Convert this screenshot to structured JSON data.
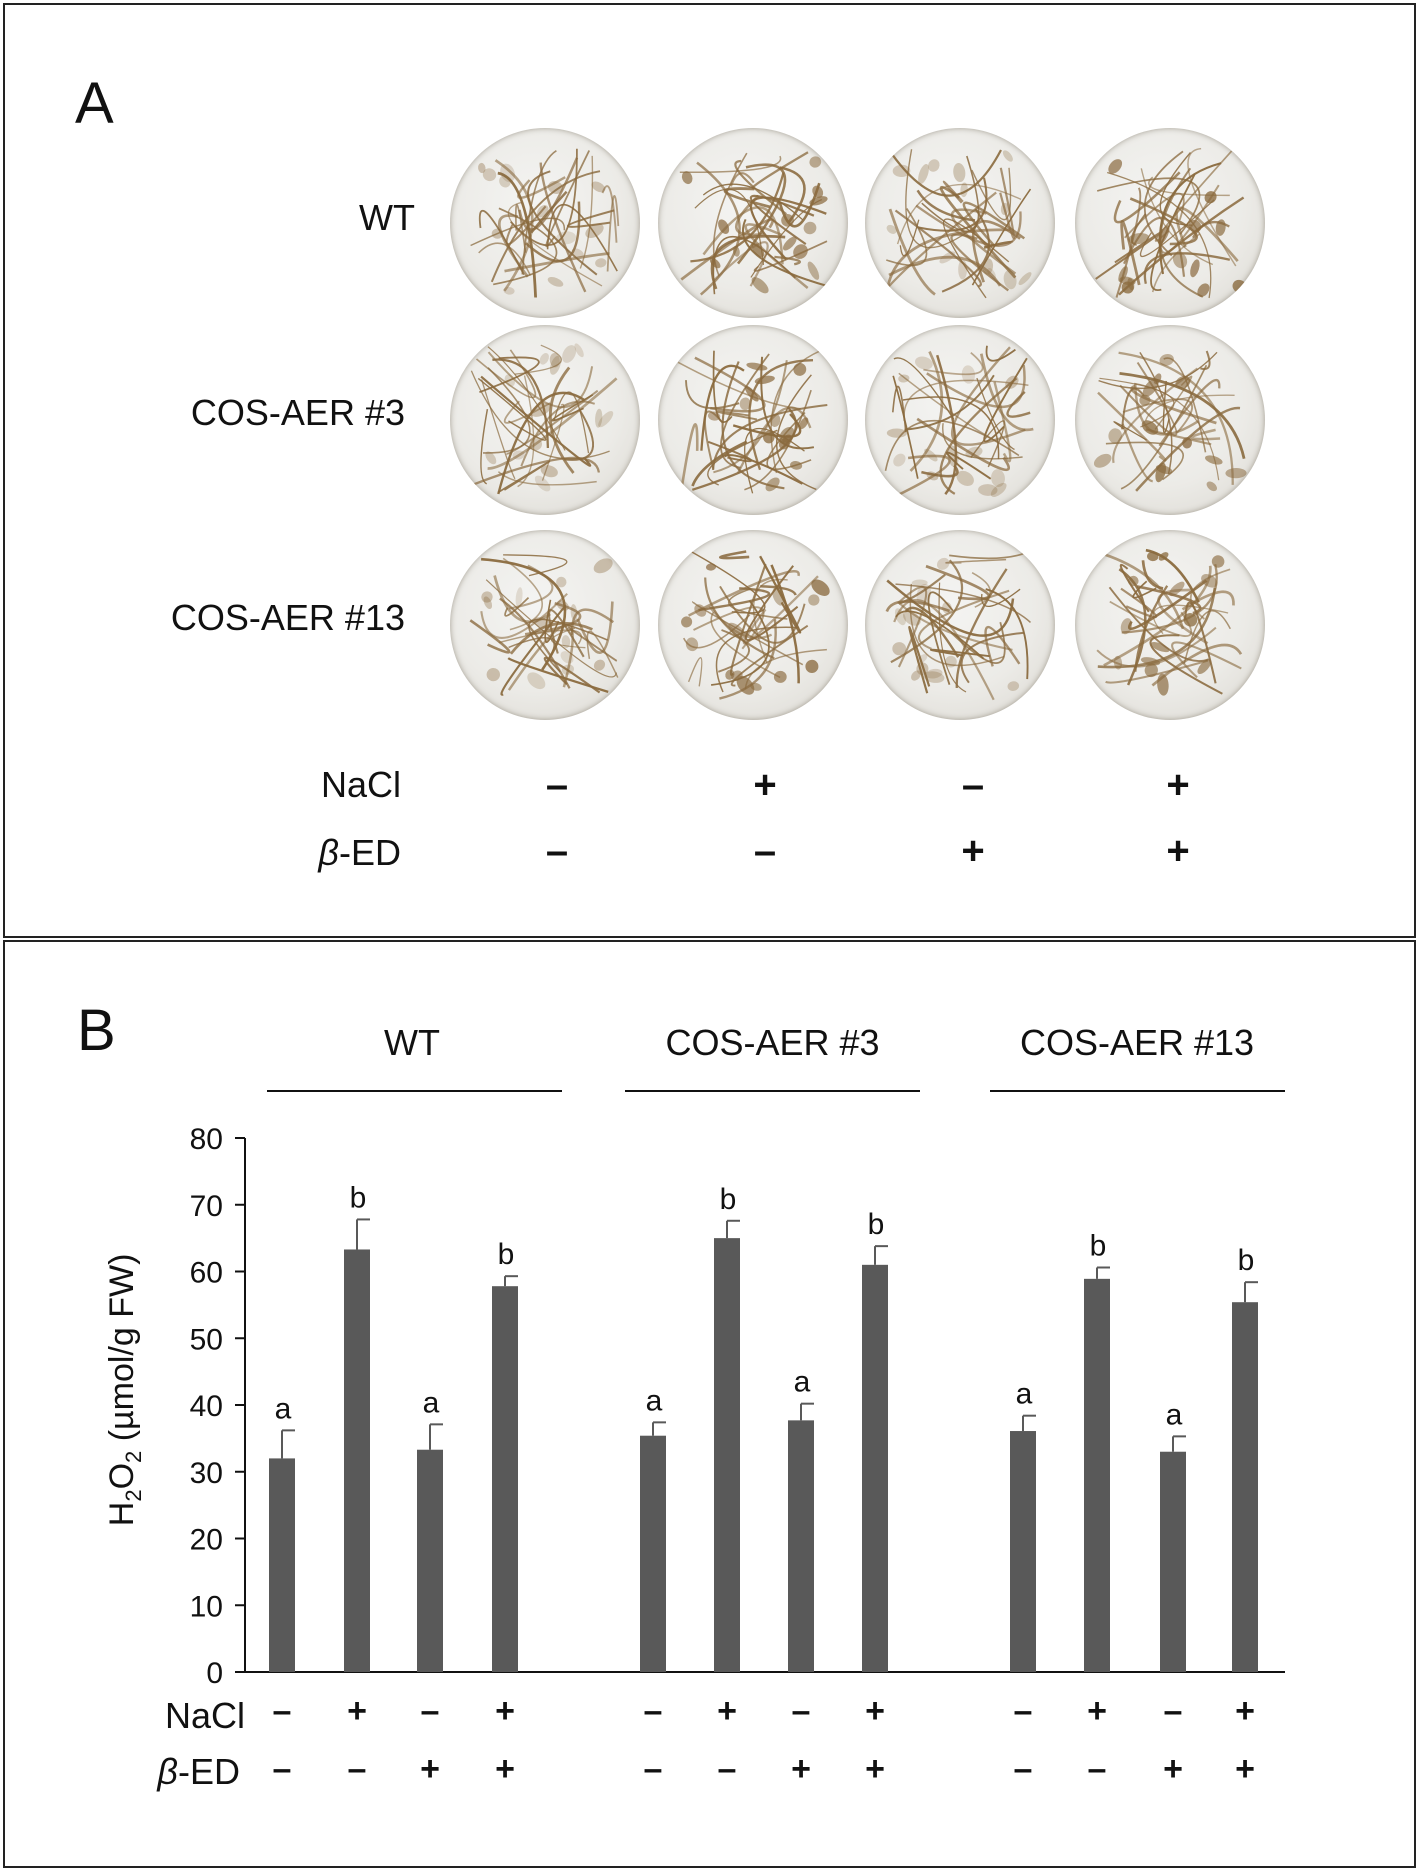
{
  "panel_a": {
    "letter": "A",
    "rows": [
      {
        "label": "WT",
        "dishes": [
          "wt-1",
          "wt-2",
          "wt-3",
          "wt-4"
        ]
      },
      {
        "label": "COS-AER #3",
        "dishes": [
          "c3-1",
          "c3-2",
          "c3-3",
          "c3-4"
        ]
      },
      {
        "label": "COS-AER #13",
        "dishes": [
          "c13-1",
          "c13-2",
          "c13-3",
          "c13-4"
        ]
      }
    ],
    "treatments": [
      {
        "label": "NaCl",
        "signs": [
          "–",
          "+",
          "–",
          "+"
        ]
      },
      {
        "label_italic": "β",
        "label_rest": "-ED",
        "signs": [
          "–",
          "–",
          "+",
          "+"
        ]
      }
    ],
    "colors": {
      "stain": "#8a6a3e",
      "dish": "#ecebe7"
    }
  },
  "panel_b": {
    "letter": "B",
    "groups": [
      "WT",
      "COS-AER #3",
      "COS-AER #13"
    ],
    "ylabel_prefix": "H",
    "ylabel_sub1": "2",
    "ylabel_mid": "O",
    "ylabel_sub2": "2",
    "ylabel_suffix": " (µmol/g FW)",
    "treatment_rows": [
      {
        "label": "NaCl",
        "signs": [
          "–",
          "+",
          "–",
          "+",
          "–",
          "+",
          "–",
          "+",
          "–",
          "+",
          "–",
          "+"
        ]
      },
      {
        "label_italic": "β",
        "label_rest": "-ED",
        "signs": [
          "–",
          "–",
          "+",
          "+",
          "–",
          "–",
          "+",
          "+",
          "–",
          "–",
          "+",
          "+"
        ]
      }
    ]
  },
  "chart_data": {
    "type": "bar",
    "ylim": [
      0,
      80
    ],
    "yticks": [
      0,
      10,
      20,
      30,
      40,
      50,
      60,
      70,
      80
    ],
    "bar_color": "#595959",
    "groups": [
      {
        "name": "WT",
        "values": [
          32.0,
          63.3,
          33.3,
          57.8
        ],
        "errors": [
          4.2,
          4.5,
          3.8,
          1.5
        ],
        "letters": [
          "a",
          "b",
          "a",
          "b"
        ]
      },
      {
        "name": "COS-AER #3",
        "values": [
          35.4,
          65.0,
          37.7,
          61.0
        ],
        "errors": [
          2.0,
          2.6,
          2.5,
          2.8
        ],
        "letters": [
          "a",
          "b",
          "a",
          "b"
        ]
      },
      {
        "name": "COS-AER #13",
        "values": [
          36.1,
          58.9,
          33.0,
          55.4
        ],
        "errors": [
          2.3,
          1.7,
          2.3,
          3.0
        ],
        "letters": [
          "a",
          "b",
          "a",
          "b"
        ]
      }
    ]
  }
}
